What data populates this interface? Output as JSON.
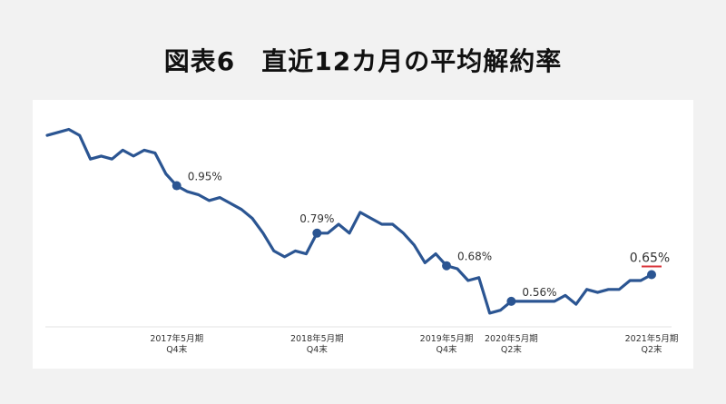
{
  "title": "図表6　直近12カ月の平均解約率",
  "chart_data": {
    "type": "line",
    "title": "図表6　直近12カ月の平均解約率",
    "ylabel": "",
    "xlabel": "",
    "ylim": [
      0.48,
      1.16
    ],
    "line_color": "#2b5592",
    "highlight_color": "#d9343b",
    "values": [
      1.12,
      1.13,
      1.14,
      1.12,
      1.04,
      1.05,
      1.04,
      1.07,
      1.05,
      1.07,
      1.06,
      0.99,
      0.95,
      0.93,
      0.92,
      0.9,
      0.91,
      0.89,
      0.87,
      0.84,
      0.79,
      0.73,
      0.71,
      0.73,
      0.72,
      0.79,
      0.79,
      0.82,
      0.79,
      0.86,
      0.84,
      0.82,
      0.82,
      0.79,
      0.75,
      0.69,
      0.72,
      0.68,
      0.67,
      0.63,
      0.64,
      0.52,
      0.53,
      0.56,
      0.56,
      0.56,
      0.56,
      0.56,
      0.58,
      0.55,
      0.6,
      0.59,
      0.6,
      0.6,
      0.63,
      0.63,
      0.65
    ],
    "markers": [
      {
        "index": 12,
        "label": "0.95%"
      },
      {
        "index": 25,
        "label": "0.79%"
      },
      {
        "index": 37,
        "label": "0.68%"
      },
      {
        "index": 43,
        "label": "0.56%"
      },
      {
        "index": 56,
        "label": "0.65%",
        "highlight": true
      }
    ],
    "x_ticks": [
      {
        "index": 12,
        "line1": "2017年5月期",
        "line2": "Q4末"
      },
      {
        "index": 25,
        "line1": "2018年5月期",
        "line2": "Q4末"
      },
      {
        "index": 37,
        "line1": "2019年5月期",
        "line2": "Q4末"
      },
      {
        "index": 43,
        "line1": "2020年5月期",
        "line2": "Q2末"
      },
      {
        "index": 56,
        "line1": "2021年5月期",
        "line2": "Q2末"
      }
    ]
  }
}
